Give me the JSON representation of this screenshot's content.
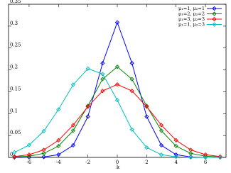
{
  "chart_data": {
    "type": "line",
    "x_label": "k",
    "x": [
      -7,
      -6,
      -5,
      -4,
      -3,
      -2,
      -1,
      0,
      1,
      2,
      3,
      4,
      5,
      6,
      7
    ],
    "xlim": [
      -7.4,
      7.4
    ],
    "xticks": [
      -6,
      -4,
      -2,
      0,
      2,
      4,
      6
    ],
    "ylim": [
      0,
      0.35
    ],
    "yticks": [
      0,
      0.05,
      0.1,
      0.15,
      0.2,
      0.25,
      0.3,
      0.35
    ],
    "legend": "upper right",
    "series": [
      {
        "name": "μ₁=1, μ₂=1",
        "color": "#0000ff",
        "values": [
          2e-05,
          0.00015,
          0.0011,
          0.0062,
          0.0277,
          0.0932,
          0.2153,
          0.3085,
          0.2153,
          0.0932,
          0.0277,
          0.0062,
          0.0011,
          0.00015,
          2e-05
        ]
      },
      {
        "name": "μ₁=2, μ₂=2",
        "color": "#008000",
        "values": [
          0.00076,
          0.00283,
          0.0092,
          0.0259,
          0.0611,
          0.1176,
          0.1788,
          0.207,
          0.1788,
          0.1176,
          0.0611,
          0.0259,
          0.0092,
          0.00283,
          0.00076
        ]
      },
      {
        "name": "μ₁=3, μ₂=3",
        "color": "#ff0000",
        "values": [
          0.0019,
          0.0063,
          0.0172,
          0.0391,
          0.0738,
          0.116,
          0.152,
          0.1667,
          0.152,
          0.116,
          0.0738,
          0.0391,
          0.0172,
          0.0063,
          0.0019
        ]
      },
      {
        "name": "μ₁=1, μ₂=3",
        "color": "#00c0c0",
        "values": [
          0.0114,
          0.0281,
          0.0601,
          0.1096,
          0.1662,
          0.2028,
          0.1906,
          0.1311,
          0.0635,
          0.0225,
          0.0062,
          0.0014,
          0.00025,
          4e-05,
          1e-05
        ]
      }
    ]
  }
}
